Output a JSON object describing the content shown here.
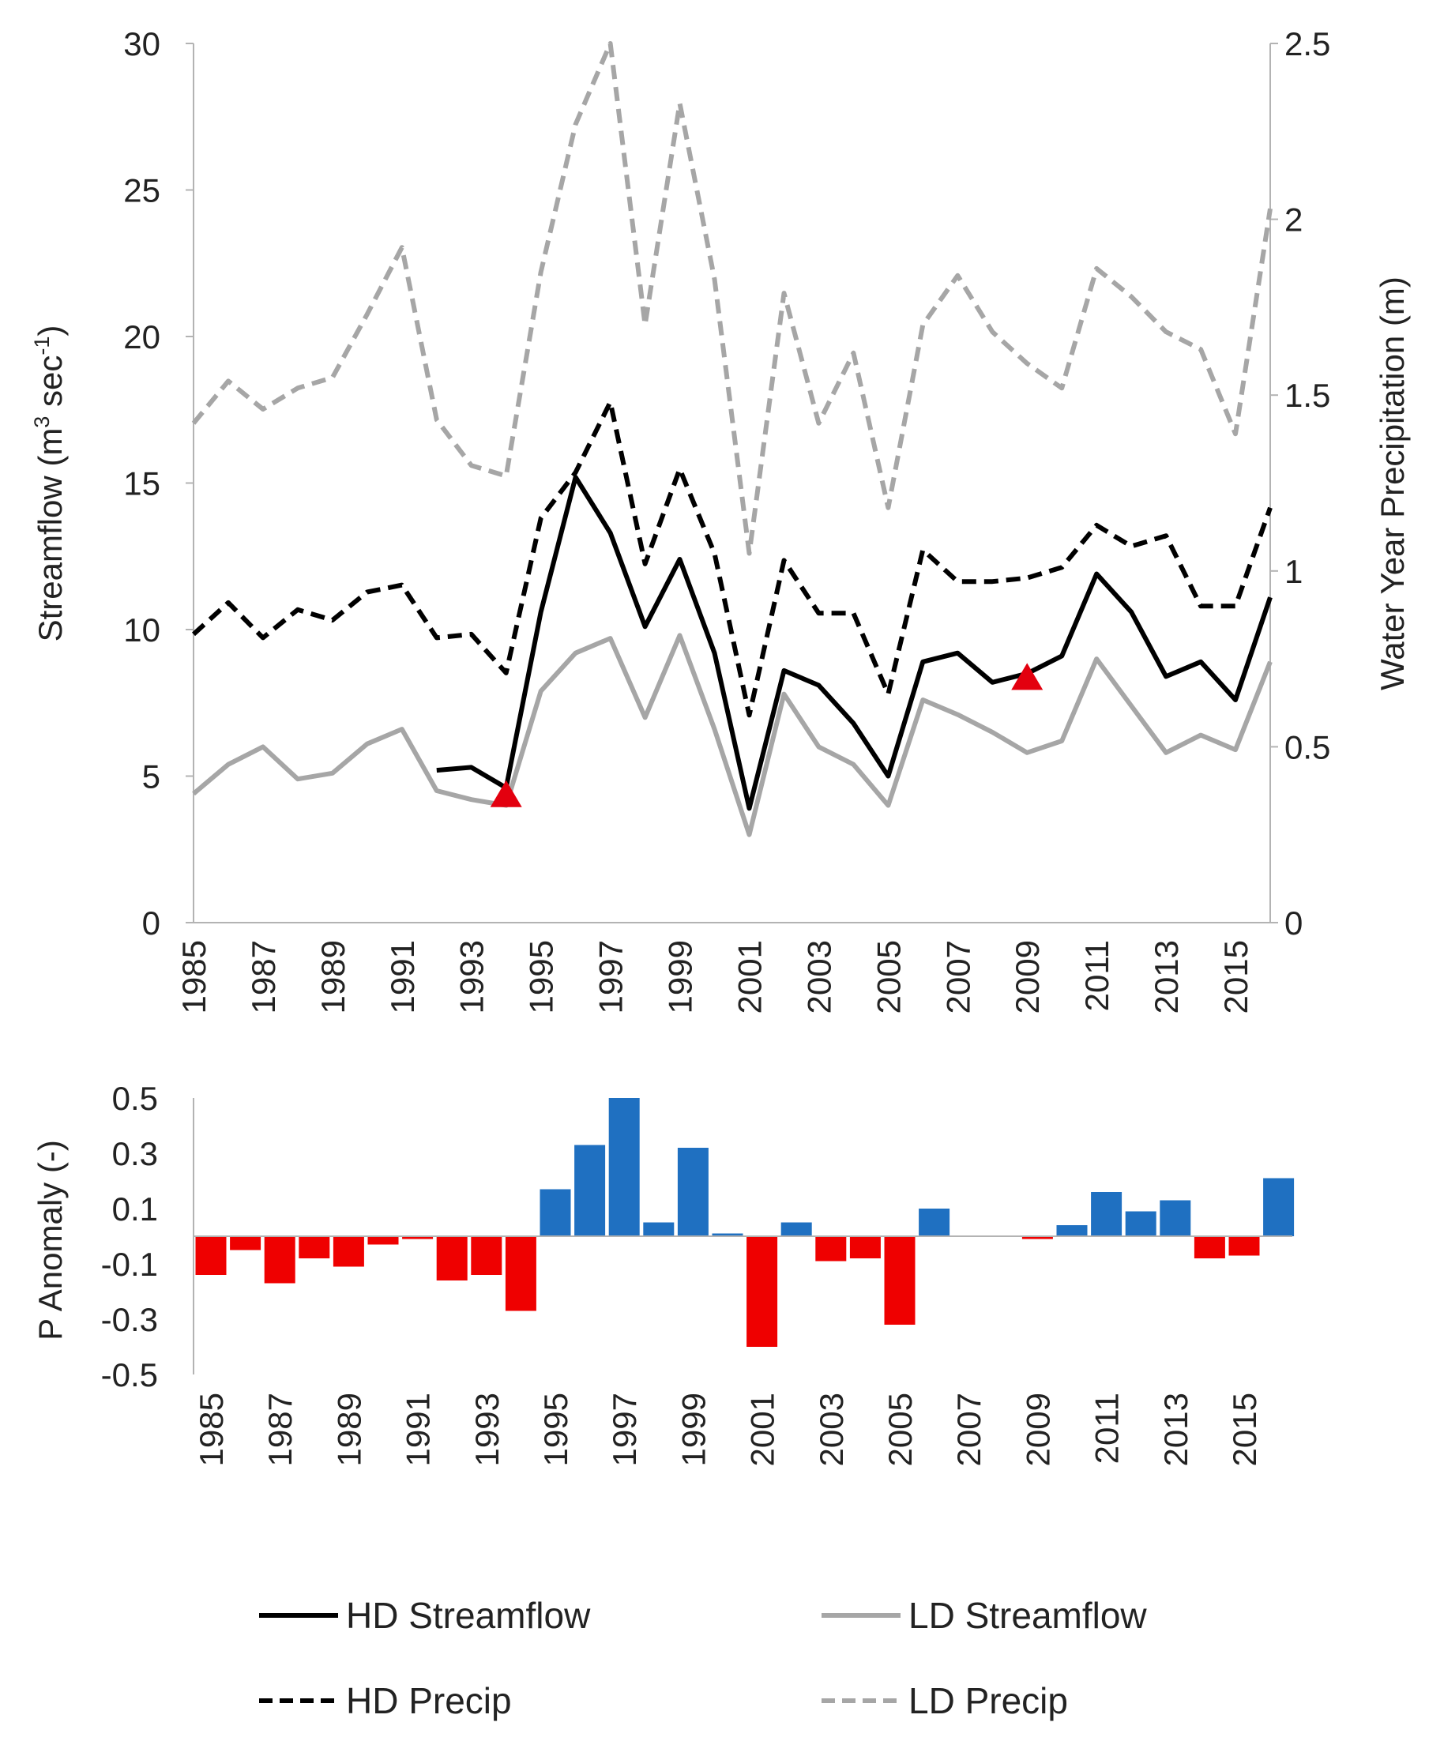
{
  "colors": {
    "hd": "#000000",
    "ld": "#a6a6a6",
    "axis": "#b3b3b3",
    "marker": "#e3000f",
    "neg": "#ef0000",
    "pos": "#1f70c1"
  },
  "chart_data": [
    {
      "type": "line",
      "x": [
        1985,
        1986,
        1987,
        1988,
        1989,
        1990,
        1991,
        1992,
        1993,
        1994,
        1995,
        1996,
        1997,
        1998,
        1999,
        2000,
        2001,
        2002,
        2003,
        2004,
        2005,
        2006,
        2007,
        2008,
        2009,
        2010,
        2011,
        2012,
        2013,
        2014,
        2015,
        2016
      ],
      "left_ylabel_main": "Streamflow (m",
      "left_ylabel_sup1": "3",
      "left_ylabel_mid": " sec",
      "left_ylabel_sup2": "-1",
      "left_ylabel_end": ")",
      "right_ylabel": "Water Year Precipitation (m)",
      "y_left_lim": [
        0,
        30
      ],
      "y_right_lim": [
        0,
        2.5
      ],
      "y_left_ticks": [
        "0",
        "5",
        "10",
        "15",
        "20",
        "25",
        "30"
      ],
      "y_right_ticks": [
        "0",
        "0.5",
        "1",
        "1.5",
        "2",
        "2.5"
      ],
      "x_tick_labels": [
        "1985",
        "1987",
        "1989",
        "1991",
        "1993",
        "1995",
        "1997",
        "1999",
        "2001",
        "2003",
        "2005",
        "2007",
        "2009",
        "2011",
        "2013",
        "2015"
      ],
      "series": [
        {
          "name": "HD Streamflow",
          "axis": "left",
          "style": "solid",
          "color": "hd",
          "values": [
            null,
            null,
            null,
            null,
            null,
            null,
            null,
            5.2,
            5.3,
            4.6,
            10.6,
            15.2,
            13.3,
            10.1,
            12.4,
            9.2,
            3.9,
            8.6,
            8.1,
            6.8,
            5.0,
            8.9,
            9.2,
            8.2,
            8.5,
            9.1,
            11.9,
            10.6,
            8.4,
            8.9,
            7.6,
            11.1
          ]
        },
        {
          "name": "LD Streamflow",
          "axis": "left",
          "style": "solid",
          "color": "ld",
          "values": [
            4.4,
            5.4,
            6.0,
            4.9,
            5.1,
            6.1,
            6.6,
            4.5,
            4.2,
            4.0,
            7.9,
            9.2,
            9.7,
            7.0,
            9.8,
            6.6,
            3.0,
            7.8,
            6.0,
            5.4,
            4.0,
            7.6,
            7.1,
            6.5,
            5.8,
            6.2,
            9.0,
            7.4,
            5.8,
            6.4,
            5.9,
            8.9
          ]
        },
        {
          "name": "HD Precip",
          "axis": "right",
          "style": "dashed",
          "color": "hd",
          "values": [
            0.82,
            0.91,
            0.81,
            0.89,
            0.86,
            0.94,
            0.96,
            0.81,
            0.82,
            0.71,
            1.15,
            1.28,
            1.48,
            1.02,
            1.29,
            1.05,
            0.59,
            1.03,
            0.88,
            0.88,
            0.65,
            1.06,
            0.97,
            0.97,
            0.98,
            1.01,
            1.13,
            1.07,
            1.1,
            0.9,
            0.9,
            1.18
          ]
        },
        {
          "name": "LD Precip",
          "axis": "right",
          "style": "dashed",
          "color": "ld",
          "values": [
            1.42,
            1.54,
            1.46,
            1.52,
            1.55,
            1.73,
            1.92,
            1.43,
            1.3,
            1.27,
            1.85,
            2.27,
            2.5,
            1.7,
            2.33,
            1.83,
            1.05,
            1.79,
            1.42,
            1.62,
            1.18,
            1.7,
            1.84,
            1.68,
            1.59,
            1.52,
            1.86,
            1.78,
            1.68,
            1.63,
            1.39,
            2.03
          ]
        }
      ],
      "markers": [
        {
          "x": 1994,
          "y": 4.4,
          "shape": "triangle"
        },
        {
          "x": 2009,
          "y": 8.4,
          "shape": "triangle"
        }
      ]
    },
    {
      "type": "bar",
      "ylabel": "P Anomaly (-)",
      "ylim": [
        -0.5,
        0.5
      ],
      "y_ticks": [
        "0.5",
        "0.3",
        "0.1",
        "-0.1",
        "-0.3",
        "-0.5"
      ],
      "x": [
        1985,
        1986,
        1987,
        1988,
        1989,
        1990,
        1991,
        1992,
        1993,
        1994,
        1995,
        1996,
        1997,
        1998,
        1999,
        2000,
        2001,
        2002,
        2003,
        2004,
        2005,
        2006,
        2007,
        2008,
        2009,
        2010,
        2011,
        2012,
        2013,
        2014,
        2015,
        2016
      ],
      "x_tick_labels": [
        "1985",
        "1987",
        "1989",
        "1991",
        "1993",
        "1995",
        "1997",
        "1999",
        "2001",
        "2003",
        "2005",
        "2007",
        "2009",
        "2011",
        "2013",
        "2015"
      ],
      "values": [
        -0.14,
        -0.05,
        -0.17,
        -0.08,
        -0.11,
        -0.03,
        -0.01,
        -0.16,
        -0.14,
        -0.27,
        0.17,
        0.33,
        0.5,
        0.05,
        0.32,
        0.01,
        -0.4,
        0.05,
        -0.09,
        -0.08,
        -0.32,
        0.1,
        0.0,
        0.0,
        -0.01,
        0.04,
        0.16,
        0.09,
        0.13,
        -0.08,
        -0.07,
        0.21
      ]
    }
  ],
  "legend": {
    "items": [
      {
        "label": "HD Streamflow",
        "color": "hd",
        "style": "solid"
      },
      {
        "label": "LD Streamflow",
        "color": "ld",
        "style": "solid"
      },
      {
        "label": "HD Precip",
        "color": "hd",
        "style": "dashed"
      },
      {
        "label": "LD Precip",
        "color": "ld",
        "style": "dashed"
      }
    ]
  }
}
